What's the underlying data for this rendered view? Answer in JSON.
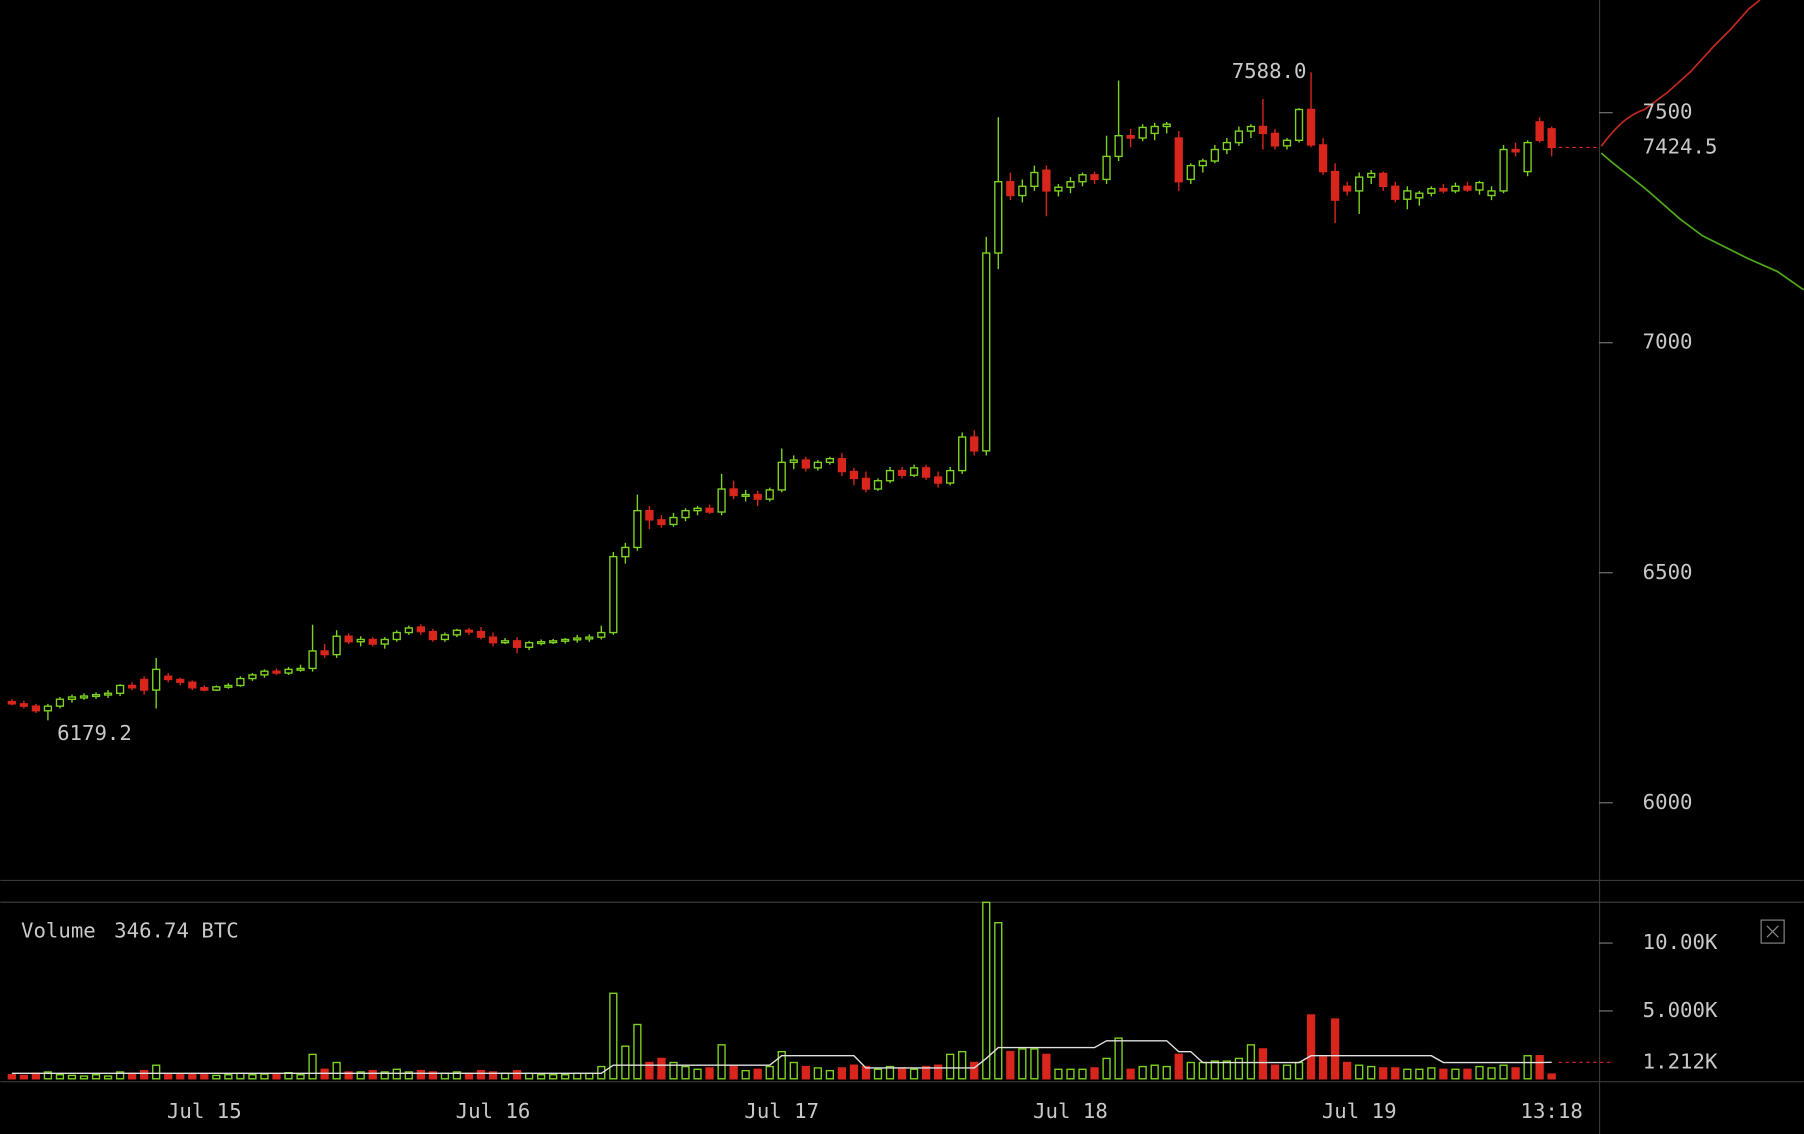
{
  "chart_data": {
    "type": "candlestick",
    "up_color": "#7ed321",
    "down_color": "#d9261c",
    "ma_color": "#e0e0e0",
    "categories": [
      null,
      null,
      null,
      null,
      null,
      null,
      null,
      null,
      null,
      null,
      null,
      null,
      null,
      null,
      null,
      null,
      "Jul 15",
      null,
      null,
      null,
      null,
      null,
      null,
      null,
      null,
      null,
      null,
      null,
      null,
      null,
      null,
      null,
      null,
      null,
      null,
      null,
      null,
      null,
      null,
      null,
      "Jul 16",
      null,
      null,
      null,
      null,
      null,
      null,
      null,
      null,
      null,
      null,
      null,
      null,
      null,
      null,
      null,
      null,
      null,
      null,
      null,
      null,
      null,
      null,
      null,
      "Jul 17",
      null,
      null,
      null,
      null,
      null,
      null,
      null,
      null,
      null,
      null,
      null,
      null,
      null,
      null,
      null,
      null,
      null,
      null,
      null,
      null,
      null,
      null,
      null,
      "Jul 18",
      null,
      null,
      null,
      null,
      null,
      null,
      null,
      null,
      null,
      null,
      null,
      null,
      null,
      null,
      null,
      null,
      null,
      null,
      null,
      null,
      null,
      null,
      null,
      "Jul 19",
      null,
      null,
      null,
      null,
      null,
      null,
      null,
      null,
      null,
      null,
      null,
      null,
      null,
      null,
      null,
      "13:18"
    ],
    "open": [
      6220,
      6215,
      6210,
      6200,
      6210,
      6225,
      6228,
      6232,
      6235,
      6238,
      6255,
      6268,
      6245,
      6275,
      6268,
      6262,
      6250,
      6245,
      6252,
      6255,
      6270,
      6278,
      6286,
      6282,
      6290,
      6292,
      6330,
      6322,
      6362,
      6350,
      6355,
      6345,
      6355,
      6370,
      6382,
      6372,
      6355,
      6365,
      6375,
      6372,
      6360,
      6348,
      6352,
      6338,
      6348,
      6350,
      6352,
      6355,
      6358,
      6360,
      6370,
      6535,
      6555,
      6635,
      6615,
      6605,
      6620,
      6635,
      6640,
      6632,
      6682,
      6668,
      6670,
      6660,
      6680,
      6740,
      6745,
      6728,
      6740,
      6748,
      6720,
      6705,
      6682,
      6700,
      6722,
      6712,
      6728,
      6708,
      6695,
      6722,
      6795,
      6765,
      7195,
      7350,
      7320,
      7340,
      7375,
      7330,
      7338,
      7350,
      7365,
      7355,
      7405,
      7450,
      7445,
      7455,
      7470,
      7445,
      7355,
      7385,
      7395,
      7420,
      7435,
      7460,
      7470,
      7455,
      7428,
      7440,
      7507,
      7430,
      7372,
      7340,
      7330,
      7360,
      7368,
      7340,
      7312,
      7315,
      7325,
      7335,
      7330,
      7340,
      7332,
      7320,
      7330,
      7420,
      7372,
      7480,
      7465
    ],
    "high": [
      6225,
      6222,
      6215,
      6215,
      6230,
      6235,
      6238,
      6240,
      6245,
      6258,
      6262,
      6275,
      6315,
      6282,
      6272,
      6266,
      6255,
      6255,
      6260,
      6275,
      6282,
      6290,
      6292,
      6295,
      6300,
      6387,
      6345,
      6375,
      6368,
      6362,
      6360,
      6360,
      6375,
      6385,
      6388,
      6378,
      6370,
      6378,
      6380,
      6382,
      6370,
      6358,
      6360,
      6352,
      6355,
      6356,
      6358,
      6365,
      6366,
      6385,
      6545,
      6565,
      6670,
      6645,
      6625,
      6630,
      6640,
      6645,
      6648,
      6715,
      6700,
      6680,
      6678,
      6685,
      6770,
      6755,
      6752,
      6745,
      6752,
      6760,
      6728,
      6720,
      6705,
      6730,
      6730,
      6735,
      6735,
      6720,
      6730,
      6805,
      6810,
      7230,
      7490,
      7370,
      7355,
      7385,
      7385,
      7345,
      7360,
      7370,
      7372,
      7450,
      7570,
      7465,
      7475,
      7478,
      7480,
      7460,
      7390,
      7400,
      7430,
      7445,
      7470,
      7475,
      7530,
      7465,
      7445,
      7510,
      7588,
      7445,
      7390,
      7350,
      7370,
      7375,
      7372,
      7350,
      7340,
      7330,
      7340,
      7345,
      7348,
      7350,
      7352,
      7340,
      7430,
      7435,
      7440,
      7490,
      7470
    ],
    "low": [
      6212,
      6205,
      6195,
      6179.2,
      6205,
      6218,
      6224,
      6226,
      6228,
      6232,
      6245,
      6235,
      6205,
      6262,
      6255,
      6245,
      6242,
      6243,
      6248,
      6252,
      6265,
      6272,
      6278,
      6278,
      6285,
      6285,
      6315,
      6315,
      6345,
      6340,
      6340,
      6335,
      6350,
      6365,
      6365,
      6350,
      6350,
      6360,
      6365,
      6355,
      6340,
      6345,
      6325,
      6332,
      6342,
      6345,
      6346,
      6348,
      6350,
      6355,
      6365,
      6520,
      6548,
      6595,
      6598,
      6600,
      6612,
      6625,
      6628,
      6625,
      6660,
      6655,
      6645,
      6655,
      6675,
      6725,
      6720,
      6722,
      6735,
      6710,
      6690,
      6675,
      6678,
      6695,
      6705,
      6708,
      6702,
      6685,
      6690,
      6715,
      6755,
      6755,
      7160,
      7310,
      7305,
      7330,
      7275,
      7318,
      7325,
      7340,
      7345,
      7345,
      7395,
      7425,
      7438,
      7440,
      7455,
      7330,
      7345,
      7370,
      7390,
      7410,
      7428,
      7445,
      7420,
      7420,
      7420,
      7435,
      7425,
      7365,
      7260,
      7320,
      7280,
      7345,
      7330,
      7305,
      7290,
      7298,
      7318,
      7325,
      7325,
      7328,
      7322,
      7310,
      7325,
      7405,
      7362,
      7435,
      7405
    ],
    "close": [
      6215,
      6210,
      6200,
      6210,
      6225,
      6230,
      6232,
      6235,
      6238,
      6255,
      6250,
      6245,
      6290,
      6268,
      6262,
      6250,
      6245,
      6252,
      6255,
      6270,
      6278,
      6286,
      6282,
      6290,
      6292,
      6330,
      6322,
      6362,
      6350,
      6355,
      6345,
      6355,
      6370,
      6380,
      6372,
      6355,
      6365,
      6375,
      6372,
      6360,
      6348,
      6352,
      6338,
      6348,
      6350,
      6352,
      6355,
      6358,
      6360,
      6370,
      6535,
      6555,
      6635,
      6615,
      6605,
      6620,
      6635,
      6640,
      6632,
      6682,
      6668,
      6670,
      6660,
      6680,
      6740,
      6745,
      6728,
      6740,
      6748,
      6720,
      6705,
      6682,
      6700,
      6722,
      6712,
      6728,
      6708,
      6695,
      6722,
      6795,
      6765,
      7195,
      7350,
      7320,
      7340,
      7370,
      7330,
      7338,
      7350,
      7365,
      7355,
      7405,
      7450,
      7445,
      7468,
      7470,
      7475,
      7350,
      7385,
      7395,
      7420,
      7435,
      7460,
      7470,
      7455,
      7428,
      7440,
      7507,
      7430,
      7372,
      7310,
      7330,
      7360,
      7368,
      7340,
      7312,
      7330,
      7325,
      7335,
      7330,
      7340,
      7332,
      7348,
      7330,
      7420,
      7415,
      7435,
      7440,
      7424.5
    ],
    "volume": [
      300,
      250,
      400,
      500,
      300,
      250,
      200,
      300,
      200,
      500,
      400,
      600,
      1000,
      300,
      300,
      350,
      300,
      250,
      300,
      400,
      300,
      350,
      300,
      450,
      300,
      1800,
      700,
      1200,
      500,
      500,
      600,
      500,
      700,
      500,
      600,
      500,
      400,
      500,
      400,
      600,
      500,
      400,
      600,
      400,
      300,
      300,
      300,
      400,
      400,
      900,
      6300,
      2400,
      4000,
      1200,
      1500,
      1200,
      900,
      700,
      800,
      2500,
      1000,
      600,
      700,
      900,
      2000,
      1200,
      900,
      800,
      600,
      800,
      1000,
      900,
      700,
      900,
      800,
      700,
      900,
      1000,
      1800,
      2000,
      1200,
      13000,
      11500,
      2000,
      2200,
      2200,
      1800,
      700,
      700,
      700,
      800,
      1500,
      3000,
      700,
      900,
      1000,
      900,
      1800,
      1200,
      1200,
      1300,
      1300,
      1500,
      2500,
      2200,
      1000,
      1000,
      1200,
      4700,
      1600,
      4400,
      1200,
      1000,
      900,
      800,
      800,
      700,
      700,
      800,
      700,
      700,
      700,
      900,
      800,
      1000,
      800,
      1700,
      1700,
      346.74
    ],
    "volume_ma": [
      400,
      400,
      400,
      400,
      400,
      400,
      400,
      400,
      400,
      400,
      400,
      400,
      400,
      400,
      400,
      400,
      400,
      400,
      400,
      400,
      400,
      400,
      400,
      400,
      400,
      400,
      400,
      400,
      400,
      400,
      400,
      400,
      400,
      400,
      400,
      400,
      400,
      400,
      400,
      400,
      400,
      400,
      400,
      400,
      400,
      400,
      400,
      400,
      400,
      400,
      1000,
      1000,
      1000,
      1000,
      1000,
      1000,
      1000,
      1000,
      1000,
      1000,
      1000,
      1000,
      1000,
      1000,
      1700,
      1700,
      1700,
      1700,
      1700,
      1700,
      1700,
      800,
      800,
      800,
      800,
      800,
      800,
      800,
      800,
      800,
      800,
      1500,
      2300,
      2300,
      2300,
      2300,
      2300,
      2300,
      2300,
      2300,
      2300,
      2800,
      2800,
      2800,
      2800,
      2800,
      2800,
      2000,
      2000,
      1200,
      1200,
      1200,
      1200,
      1200,
      1200,
      1200,
      1200,
      1200,
      1700,
      1700,
      1700,
      1700,
      1700,
      1700,
      1700,
      1700,
      1700,
      1700,
      1700,
      1200,
      1200,
      1200,
      1200,
      1200,
      1200,
      1200,
      1200,
      1200,
      1212
    ],
    "ylim": [
      5832.5,
      7745
    ],
    "yticks": [
      6000,
      6500,
      7000,
      7500
    ],
    "last_price": 7424.5,
    "high_label": {
      "value": 7588,
      "label": "7588.0"
    },
    "low_label": 6179.2,
    "volume_title": "Volume",
    "volume_readout": "346.74 BTC",
    "volume_ylim": [
      0,
      13051
    ],
    "volume_ticks": [
      {
        "value": 5000,
        "label": "5.000K"
      },
      {
        "value": 10000,
        "label": "10.00K"
      }
    ],
    "volume_ma_last": {
      "value": 1212,
      "label": "1.212K"
    }
  }
}
